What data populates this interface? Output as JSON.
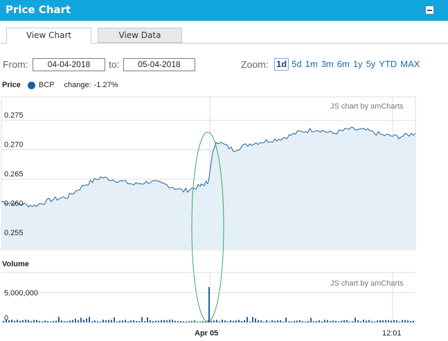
{
  "header": {
    "title": "Price Chart"
  },
  "tabs": [
    {
      "label": "View Chart",
      "active": true
    },
    {
      "label": "View Data",
      "active": false
    }
  ],
  "range": {
    "from_label": "From:",
    "from_value": "04-04-2018",
    "to_label": "to:",
    "to_value": "05-04-2018"
  },
  "zoom": {
    "label": "Zoom:",
    "options": [
      "1d",
      "5d",
      "1m",
      "3m",
      "6m",
      "1y",
      "5y",
      "YTD",
      "MAX"
    ],
    "active": "1d"
  },
  "legend": {
    "title": "Price",
    "series_name": "BCP",
    "change_label": "change:",
    "change_value": "-1.27%",
    "series_color": "#1760a8"
  },
  "volume_title": "Volume",
  "credit": "JS chart by amCharts",
  "colors": {
    "header_bg": "#12a4dd",
    "line": "#1e5f9e",
    "fill": "#e5eff8",
    "annotation": "#3aa655"
  },
  "chart_data": [
    {
      "type": "area",
      "title": "Price",
      "x_ticks": [
        "Apr 05",
        "12:01"
      ],
      "y_ticks": [
        "0.255",
        "0.260",
        "0.265",
        "0.270",
        "0.275"
      ],
      "ylim": [
        0.253,
        0.279
      ],
      "grid": true,
      "series": [
        {
          "name": "BCP",
          "x": [
            0,
            2,
            4,
            6,
            8,
            10,
            12,
            14,
            16,
            18,
            20,
            22,
            24,
            25,
            25.5,
            26,
            28,
            30,
            32,
            34,
            36,
            38,
            40,
            42,
            44,
            46,
            48,
            50
          ],
          "values": [
            0.2612,
            0.2608,
            0.2605,
            0.2615,
            0.262,
            0.264,
            0.2653,
            0.2648,
            0.2641,
            0.2646,
            0.264,
            0.263,
            0.2638,
            0.2645,
            0.2695,
            0.2715,
            0.27,
            0.271,
            0.2715,
            0.272,
            0.273,
            0.2735,
            0.2728,
            0.2735,
            0.2733,
            0.2725,
            0.2722,
            0.2728
          ]
        }
      ],
      "annotation": "ellipse around price jump at Apr 05"
    },
    {
      "type": "bar",
      "title": "Volume",
      "y_ticks": [
        "0",
        "5,000,000"
      ],
      "ylim": [
        0,
        10000000
      ],
      "series": [
        {
          "name": "Volume",
          "spike_at": 25,
          "spike_value": 7000000
        }
      ]
    }
  ]
}
